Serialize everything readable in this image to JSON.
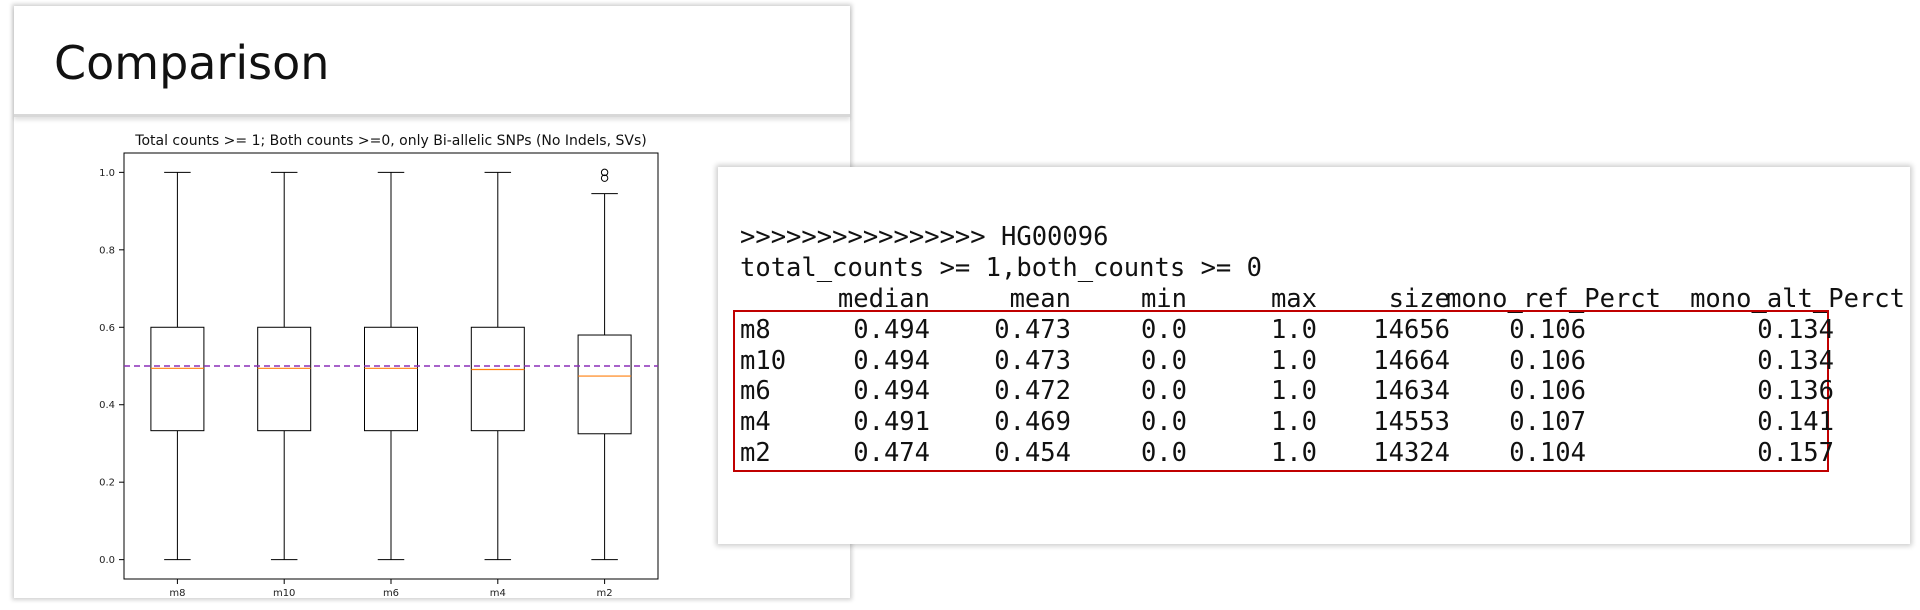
{
  "slide": {
    "title": "Comparison"
  },
  "chart_data": {
    "type": "box",
    "title": "Total counts >= 1; Both counts >=0, only Bi-allelic SNPs (No Indels, SVs)",
    "categories": [
      "m8",
      "m10",
      "m6",
      "m4",
      "m2"
    ],
    "yticks": [
      "0.0",
      "0.2",
      "0.4",
      "0.6",
      "0.8",
      "1.0"
    ],
    "ylim": [
      -0.05,
      1.05
    ],
    "boxes": [
      {
        "name": "m8",
        "min": 0.0,
        "q1": 0.333,
        "median": 0.494,
        "q3": 0.6,
        "max": 1.0,
        "outliers": []
      },
      {
        "name": "m10",
        "min": 0.0,
        "q1": 0.333,
        "median": 0.494,
        "q3": 0.6,
        "max": 1.0,
        "outliers": []
      },
      {
        "name": "m6",
        "min": 0.0,
        "q1": 0.333,
        "median": 0.494,
        "q3": 0.6,
        "max": 1.0,
        "outliers": []
      },
      {
        "name": "m4",
        "min": 0.0,
        "q1": 0.333,
        "median": 0.491,
        "q3": 0.6,
        "max": 1.0,
        "outliers": []
      },
      {
        "name": "m2",
        "min": 0.0,
        "q1": 0.325,
        "median": 0.474,
        "q3": 0.58,
        "max": 0.945,
        "outliers": [
          0.985,
          1.0
        ]
      }
    ],
    "reference_line": {
      "y": 0.5,
      "color": "#8b2fb8"
    },
    "colors": {
      "box": "#000000",
      "median": "#ff7f0e"
    }
  },
  "table": {
    "line1": ">>>>>>>>>>>>>>>> HG00096",
    "line2": "total_counts >= 1,both_counts >= 0",
    "columns": [
      "median",
      "mean",
      "min",
      "max",
      "size",
      "mono_ref_Perct",
      "mono_alt_Perct"
    ],
    "rows": [
      {
        "label": "m8",
        "values": [
          "0.494",
          "0.473",
          "0.0",
          "1.0",
          "14656",
          "0.106",
          "0.134"
        ]
      },
      {
        "label": "m10",
        "values": [
          "0.494",
          "0.473",
          "0.0",
          "1.0",
          "14664",
          "0.106",
          "0.134"
        ]
      },
      {
        "label": "m6",
        "values": [
          "0.494",
          "0.472",
          "0.0",
          "1.0",
          "14634",
          "0.106",
          "0.136"
        ]
      },
      {
        "label": "m4",
        "values": [
          "0.491",
          "0.469",
          "0.0",
          "1.0",
          "14553",
          "0.107",
          "0.141"
        ]
      },
      {
        "label": "m2",
        "values": [
          "0.474",
          "0.454",
          "0.0",
          "1.0",
          "14324",
          "0.104",
          "0.157"
        ]
      }
    ],
    "highlight_color": "#c00000"
  }
}
